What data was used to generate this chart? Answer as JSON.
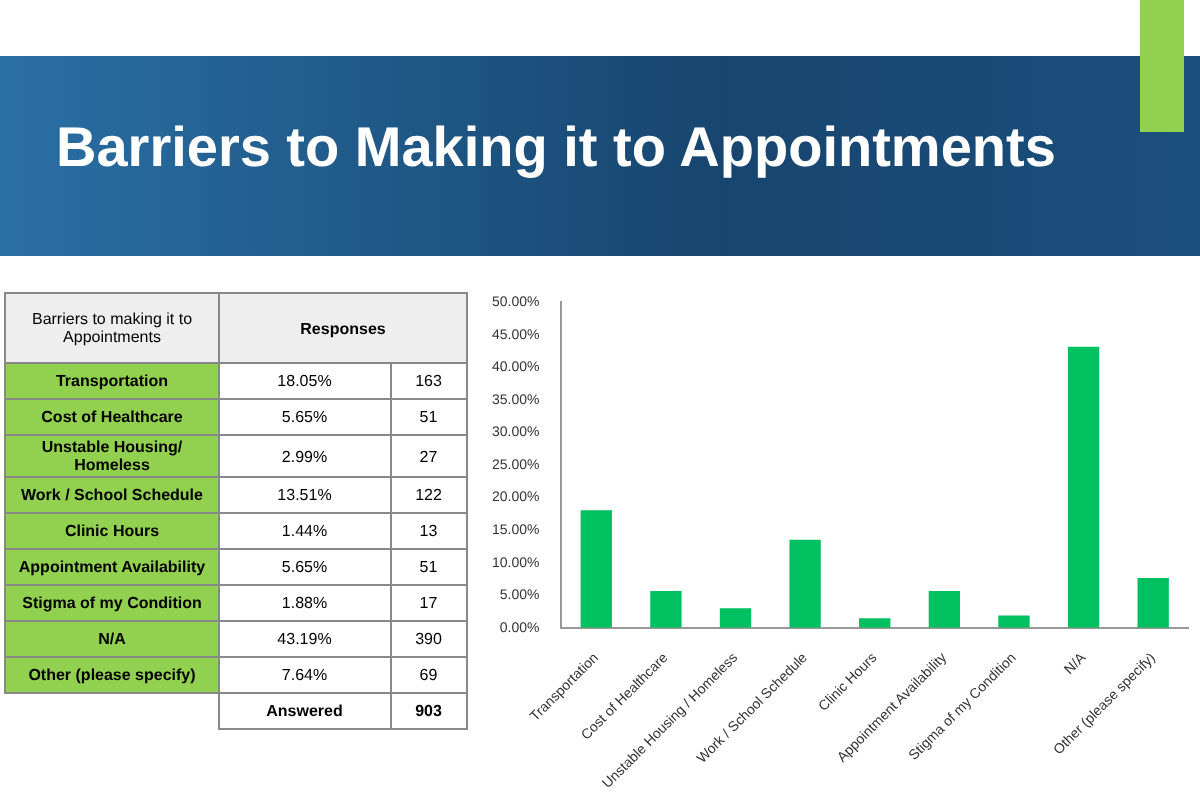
{
  "chart_data": [
    {
      "type": "other",
      "title": "Barriers to Making it to Appointments",
      "annotations": [
        "Barriers to making it to Appointments",
        "Responses",
        "Transportation",
        "18.05%",
        "163",
        "Cost of Healthcare",
        "5.65%",
        "51",
        "Unstable Housing/ Homeless",
        "2.99%",
        "27",
        "Work / School Schedule",
        "13.51%",
        "122",
        "Clinic Hours",
        "1.44%",
        "13",
        "Appointment Availability",
        "5.65%",
        "51",
        "Stigma of my Condition",
        "1.88%",
        "17",
        "N/A",
        "43.19%",
        "390",
        "Other (please specify)",
        "7.64%",
        "69",
        "Answered",
        "903"
      ]
    },
    {
      "type": "bar",
      "categories": [
        "Transportation",
        "Cost of Healthcare",
        "Unstable Housing / Homeless",
        "Work / School Schedule",
        "Clinic Hours",
        "Appointment Availability",
        "Stigma of my Condition",
        "N/A",
        "Other (please specify)"
      ],
      "values": [
        18.05,
        5.65,
        2.99,
        13.51,
        1.44,
        5.65,
        1.88,
        43.19,
        7.64
      ],
      "color": "#00c060",
      "ylim": [
        0,
        50
      ],
      "yticks": [
        {
          "value": 0,
          "label": "0.00%"
        },
        {
          "value": 5,
          "label": "5.00%"
        },
        {
          "value": 10,
          "label": "10.00%"
        },
        {
          "value": 15,
          "label": "15.00%"
        },
        {
          "value": 20,
          "label": "20.00%"
        },
        {
          "value": 25,
          "label": "25.00%"
        },
        {
          "value": 30,
          "label": "30.00%"
        },
        {
          "value": 35,
          "label": "35.00%"
        },
        {
          "value": 40,
          "label": "40.00%"
        },
        {
          "value": 45,
          "label": "45.00%"
        },
        {
          "value": 50,
          "label": "50.00%"
        }
      ],
      "grid": false
    }
  ]
}
